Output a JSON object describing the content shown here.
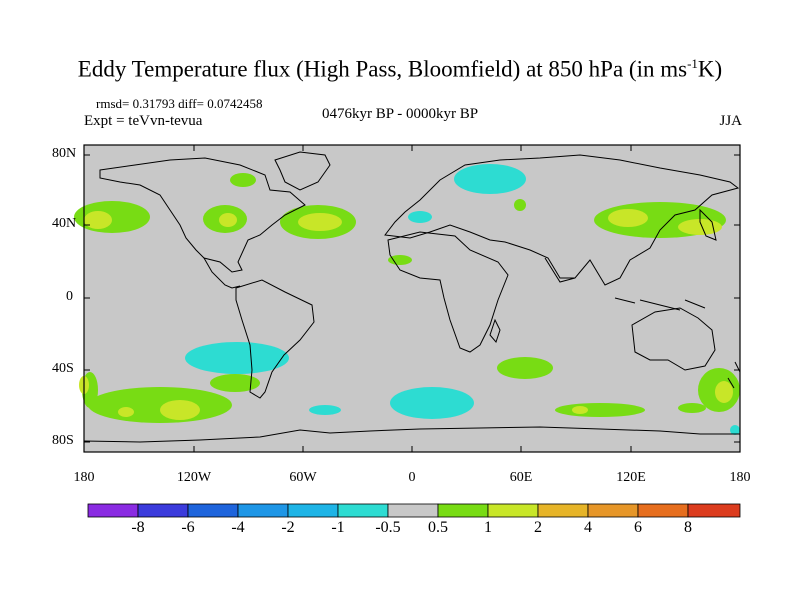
{
  "title": {
    "main": "Eddy Temperature flux (High Pass, Bloomfield) at 850 hPa (in ms",
    "sup": "-1",
    "end": "K)"
  },
  "stats": {
    "text": "rmsd= 0.31793 diff= 0.0742458"
  },
  "expt": {
    "text": "Expt = teVvn-tevua"
  },
  "period": {
    "text": "0476kyr BP - 0000kyr BP"
  },
  "season": {
    "text": "JJA"
  },
  "lat_labels": [
    "80N",
    "40N",
    "0",
    "40S",
    "80S"
  ],
  "lon_labels": [
    "180",
    "120W",
    "60W",
    "0",
    "60E",
    "120E",
    "180"
  ],
  "colorbar": {
    "labels": [
      "-8",
      "-6",
      "-4",
      "-2",
      "-1",
      "-0.5",
      "0.5",
      "1",
      "2",
      "4",
      "6",
      "8"
    ],
    "colors": [
      "#8a2be2",
      "#3b3bdc",
      "#1e64dc",
      "#1e96e6",
      "#1eb4e6",
      "#2ddcd2",
      "#c8c8c8",
      "#78dc14",
      "#c8e628",
      "#e6b428",
      "#e69628",
      "#e66e1e",
      "#dc3c1e"
    ]
  },
  "map": {
    "ocean_color": "#cfcfcf",
    "background_color": "#c8c8c8"
  }
}
